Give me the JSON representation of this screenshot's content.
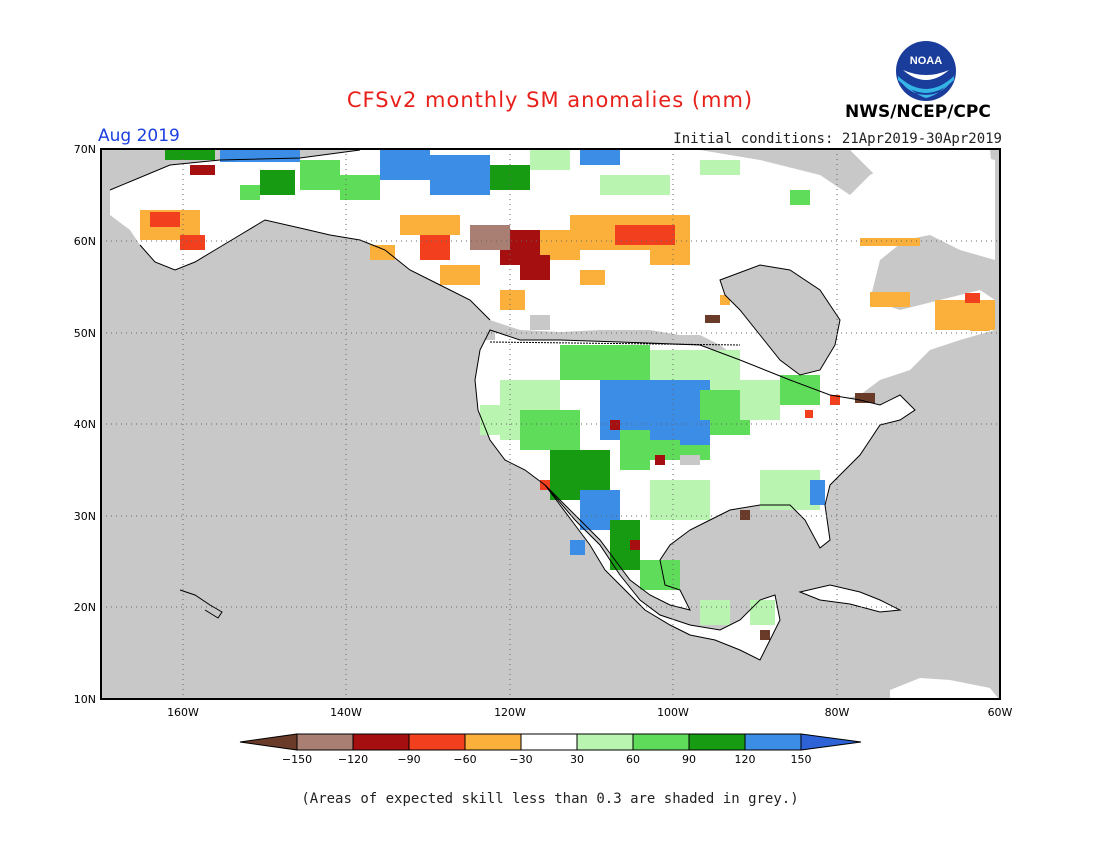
{
  "title": "CFSv2 monthly SM anomalies (mm)",
  "month": "Aug 2019",
  "initial_conditions": "Initial conditions: 21Apr2019-30Apr2019",
  "agency": "NWS/NCEP/CPC",
  "logo_text": "NOAA",
  "footnote": "(Areas of expected skill less than 0.3 are shaded in grey.)",
  "lat_labels": [
    "70N",
    "60N",
    "50N",
    "40N",
    "30N",
    "20N",
    "10N"
  ],
  "lon_labels": [
    "160W",
    "140W",
    "120W",
    "100W",
    "80W",
    "60W"
  ],
  "legend": {
    "colors": [
      "#6b3b2a",
      "#a87f72",
      "#a50f0f",
      "#f2401e",
      "#fbb03b",
      "#ffffff",
      "#b9f5b0",
      "#5fdc5a",
      "#169b12",
      "#3c8de6",
      "#2e63d8"
    ],
    "labels": [
      "−150",
      "−120",
      "−90",
      "−60",
      "−30",
      "30",
      "60",
      "90",
      "120",
      "150"
    ]
  },
  "colors": {
    "ocean": "#c8c8c8",
    "land_low_skill": "#ffffff",
    "title": "#e8201a",
    "month": "#1a3fe0"
  }
}
